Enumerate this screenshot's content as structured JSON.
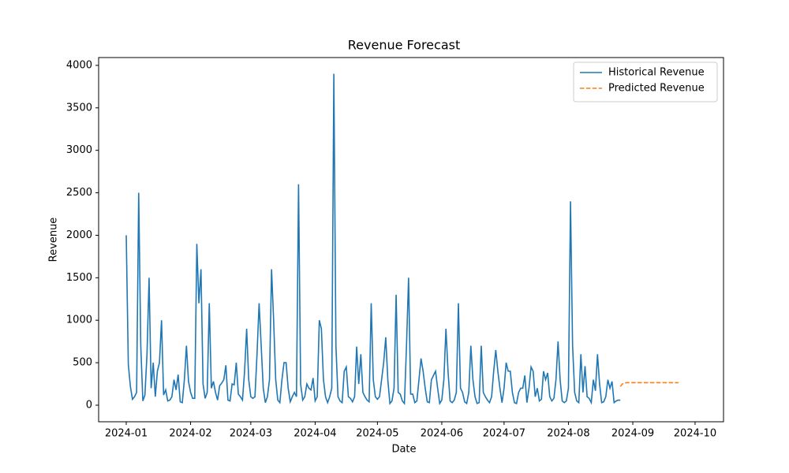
{
  "chart_data": {
    "type": "line",
    "title": "Revenue Forecast",
    "x_label": "Date",
    "y_label": "Revenue",
    "xlim": [
      -13.3,
      287.7
    ],
    "ylim": [
      -195,
      4092
    ],
    "xticks": [
      {
        "value": 0,
        "label": "2024-01"
      },
      {
        "value": 31,
        "label": "2024-02"
      },
      {
        "value": 60,
        "label": "2024-03"
      },
      {
        "value": 91,
        "label": "2024-04"
      },
      {
        "value": 121,
        "label": "2024-05"
      },
      {
        "value": 152,
        "label": "2024-06"
      },
      {
        "value": 182,
        "label": "2024-07"
      },
      {
        "value": 213,
        "label": "2024-08"
      },
      {
        "value": 244,
        "label": "2024-09"
      },
      {
        "value": 274,
        "label": "2024-10"
      }
    ],
    "yticks": [
      0,
      500,
      1000,
      1500,
      2000,
      2500,
      3000,
      3500,
      4000
    ],
    "grid": false,
    "legend": "upper right",
    "series": [
      {
        "name": "Historical Revenue",
        "color": "#1f77b4",
        "linestyle": "solid",
        "x": [
          0,
          1,
          2,
          3,
          4,
          5,
          6,
          7,
          8,
          9,
          10,
          11,
          12,
          13,
          14,
          15,
          16,
          17,
          18,
          19,
          20,
          21,
          22,
          23,
          24,
          25,
          26,
          27,
          28,
          29,
          30,
          31,
          32,
          33,
          34,
          35,
          36,
          37,
          38,
          39,
          40,
          41,
          42,
          43,
          44,
          45,
          46,
          47,
          48,
          49,
          50,
          51,
          52,
          53,
          54,
          55,
          56,
          57,
          58,
          59,
          60,
          61,
          62,
          63,
          64,
          65,
          66,
          67,
          68,
          69,
          70,
          71,
          72,
          73,
          74,
          75,
          76,
          77,
          78,
          79,
          80,
          81,
          82,
          83,
          84,
          85,
          86,
          87,
          88,
          89,
          90,
          91,
          92,
          93,
          94,
          95,
          96,
          97,
          98,
          99,
          100,
          101,
          102,
          103,
          104,
          105,
          106,
          107,
          108,
          109,
          110,
          111,
          112,
          113,
          114,
          115,
          116,
          117,
          118,
          119,
          120,
          121,
          122,
          123,
          124,
          125,
          126,
          127,
          128,
          129,
          130,
          131,
          132,
          133,
          134,
          135,
          136,
          137,
          138,
          139,
          140,
          141,
          142,
          143,
          144,
          145,
          146,
          147,
          148,
          149,
          150,
          151,
          152,
          153,
          154,
          155,
          156,
          157,
          158,
          159,
          160,
          161,
          162,
          163,
          164,
          165,
          166,
          167,
          168,
          169,
          170,
          171,
          172,
          173,
          174,
          175,
          176,
          177,
          178,
          179,
          180,
          181,
          182,
          183,
          184,
          185,
          186,
          187,
          188,
          189,
          190,
          191,
          192,
          193,
          194,
          195,
          196,
          197,
          198,
          199,
          200,
          201,
          202,
          203,
          204,
          205,
          206,
          207,
          208,
          209,
          210,
          211,
          212,
          213,
          214,
          215,
          216,
          217,
          218,
          219,
          220,
          221,
          222,
          223,
          224,
          225,
          226,
          227,
          228,
          229,
          230,
          231,
          232,
          233,
          234,
          235,
          236,
          237,
          238
        ],
        "values": [
          2000,
          480,
          220,
          70,
          100,
          150,
          2500,
          700,
          50,
          120,
          600,
          1500,
          200,
          500,
          100,
          400,
          500,
          1000,
          120,
          180,
          50,
          60,
          100,
          300,
          180,
          360,
          40,
          30,
          300,
          700,
          280,
          150,
          80,
          80,
          1900,
          1200,
          1600,
          250,
          80,
          150,
          1200,
          200,
          280,
          150,
          60,
          230,
          260,
          300,
          470,
          60,
          50,
          250,
          240,
          500,
          130,
          100,
          60,
          400,
          900,
          300,
          100,
          80,
          100,
          600,
          1200,
          700,
          200,
          30,
          100,
          300,
          1600,
          1000,
          300,
          60,
          30,
          300,
          500,
          500,
          200,
          40,
          100,
          150,
          100,
          2600,
          250,
          60,
          100,
          250,
          200,
          180,
          320,
          50,
          100,
          1000,
          900,
          300,
          100,
          30,
          100,
          200,
          3900,
          700,
          100,
          50,
          30,
          400,
          450,
          100,
          80,
          40,
          100,
          690,
          250,
          600,
          150,
          100,
          60,
          40,
          1200,
          300,
          100,
          70,
          100,
          300,
          500,
          800,
          300,
          20,
          50,
          200,
          1300,
          150,
          130,
          50,
          20,
          700,
          1500,
          130,
          130,
          30,
          50,
          300,
          550,
          400,
          200,
          40,
          30,
          300,
          350,
          400,
          200,
          20,
          60,
          300,
          900,
          400,
          50,
          30,
          60,
          150,
          1200,
          200,
          150,
          40,
          20,
          150,
          700,
          300,
          100,
          20,
          30,
          700,
          150,
          100,
          60,
          30,
          100,
          400,
          650,
          400,
          200,
          30,
          200,
          500,
          400,
          400,
          150,
          30,
          20,
          150,
          200,
          200,
          350,
          30,
          200,
          450,
          400,
          100,
          200,
          50,
          70,
          400,
          300,
          380,
          100,
          50,
          80,
          300,
          750,
          300,
          50,
          30,
          50,
          200,
          2400,
          700,
          150,
          50,
          30,
          600,
          150,
          460,
          100,
          80,
          30,
          300,
          170,
          600,
          250,
          30,
          40,
          100,
          300,
          200,
          280,
          30,
          50,
          60,
          60
        ]
      },
      {
        "name": "Predicted Revenue",
        "color": "#ff7f0e",
        "linestyle": "dashed",
        "x": [
          238,
          239,
          240,
          241,
          242,
          243,
          244,
          245,
          246,
          247,
          248,
          249,
          250,
          251,
          252,
          253,
          254,
          255,
          256,
          257,
          258,
          259,
          260,
          261,
          262,
          263,
          264,
          265,
          266
        ],
        "values": [
          220,
          250,
          262,
          265,
          265,
          265,
          265,
          265,
          265,
          265,
          265,
          265,
          265,
          265,
          265,
          265,
          265,
          265,
          265,
          265,
          265,
          265,
          265,
          265,
          265,
          265,
          265,
          265,
          265
        ]
      }
    ]
  }
}
